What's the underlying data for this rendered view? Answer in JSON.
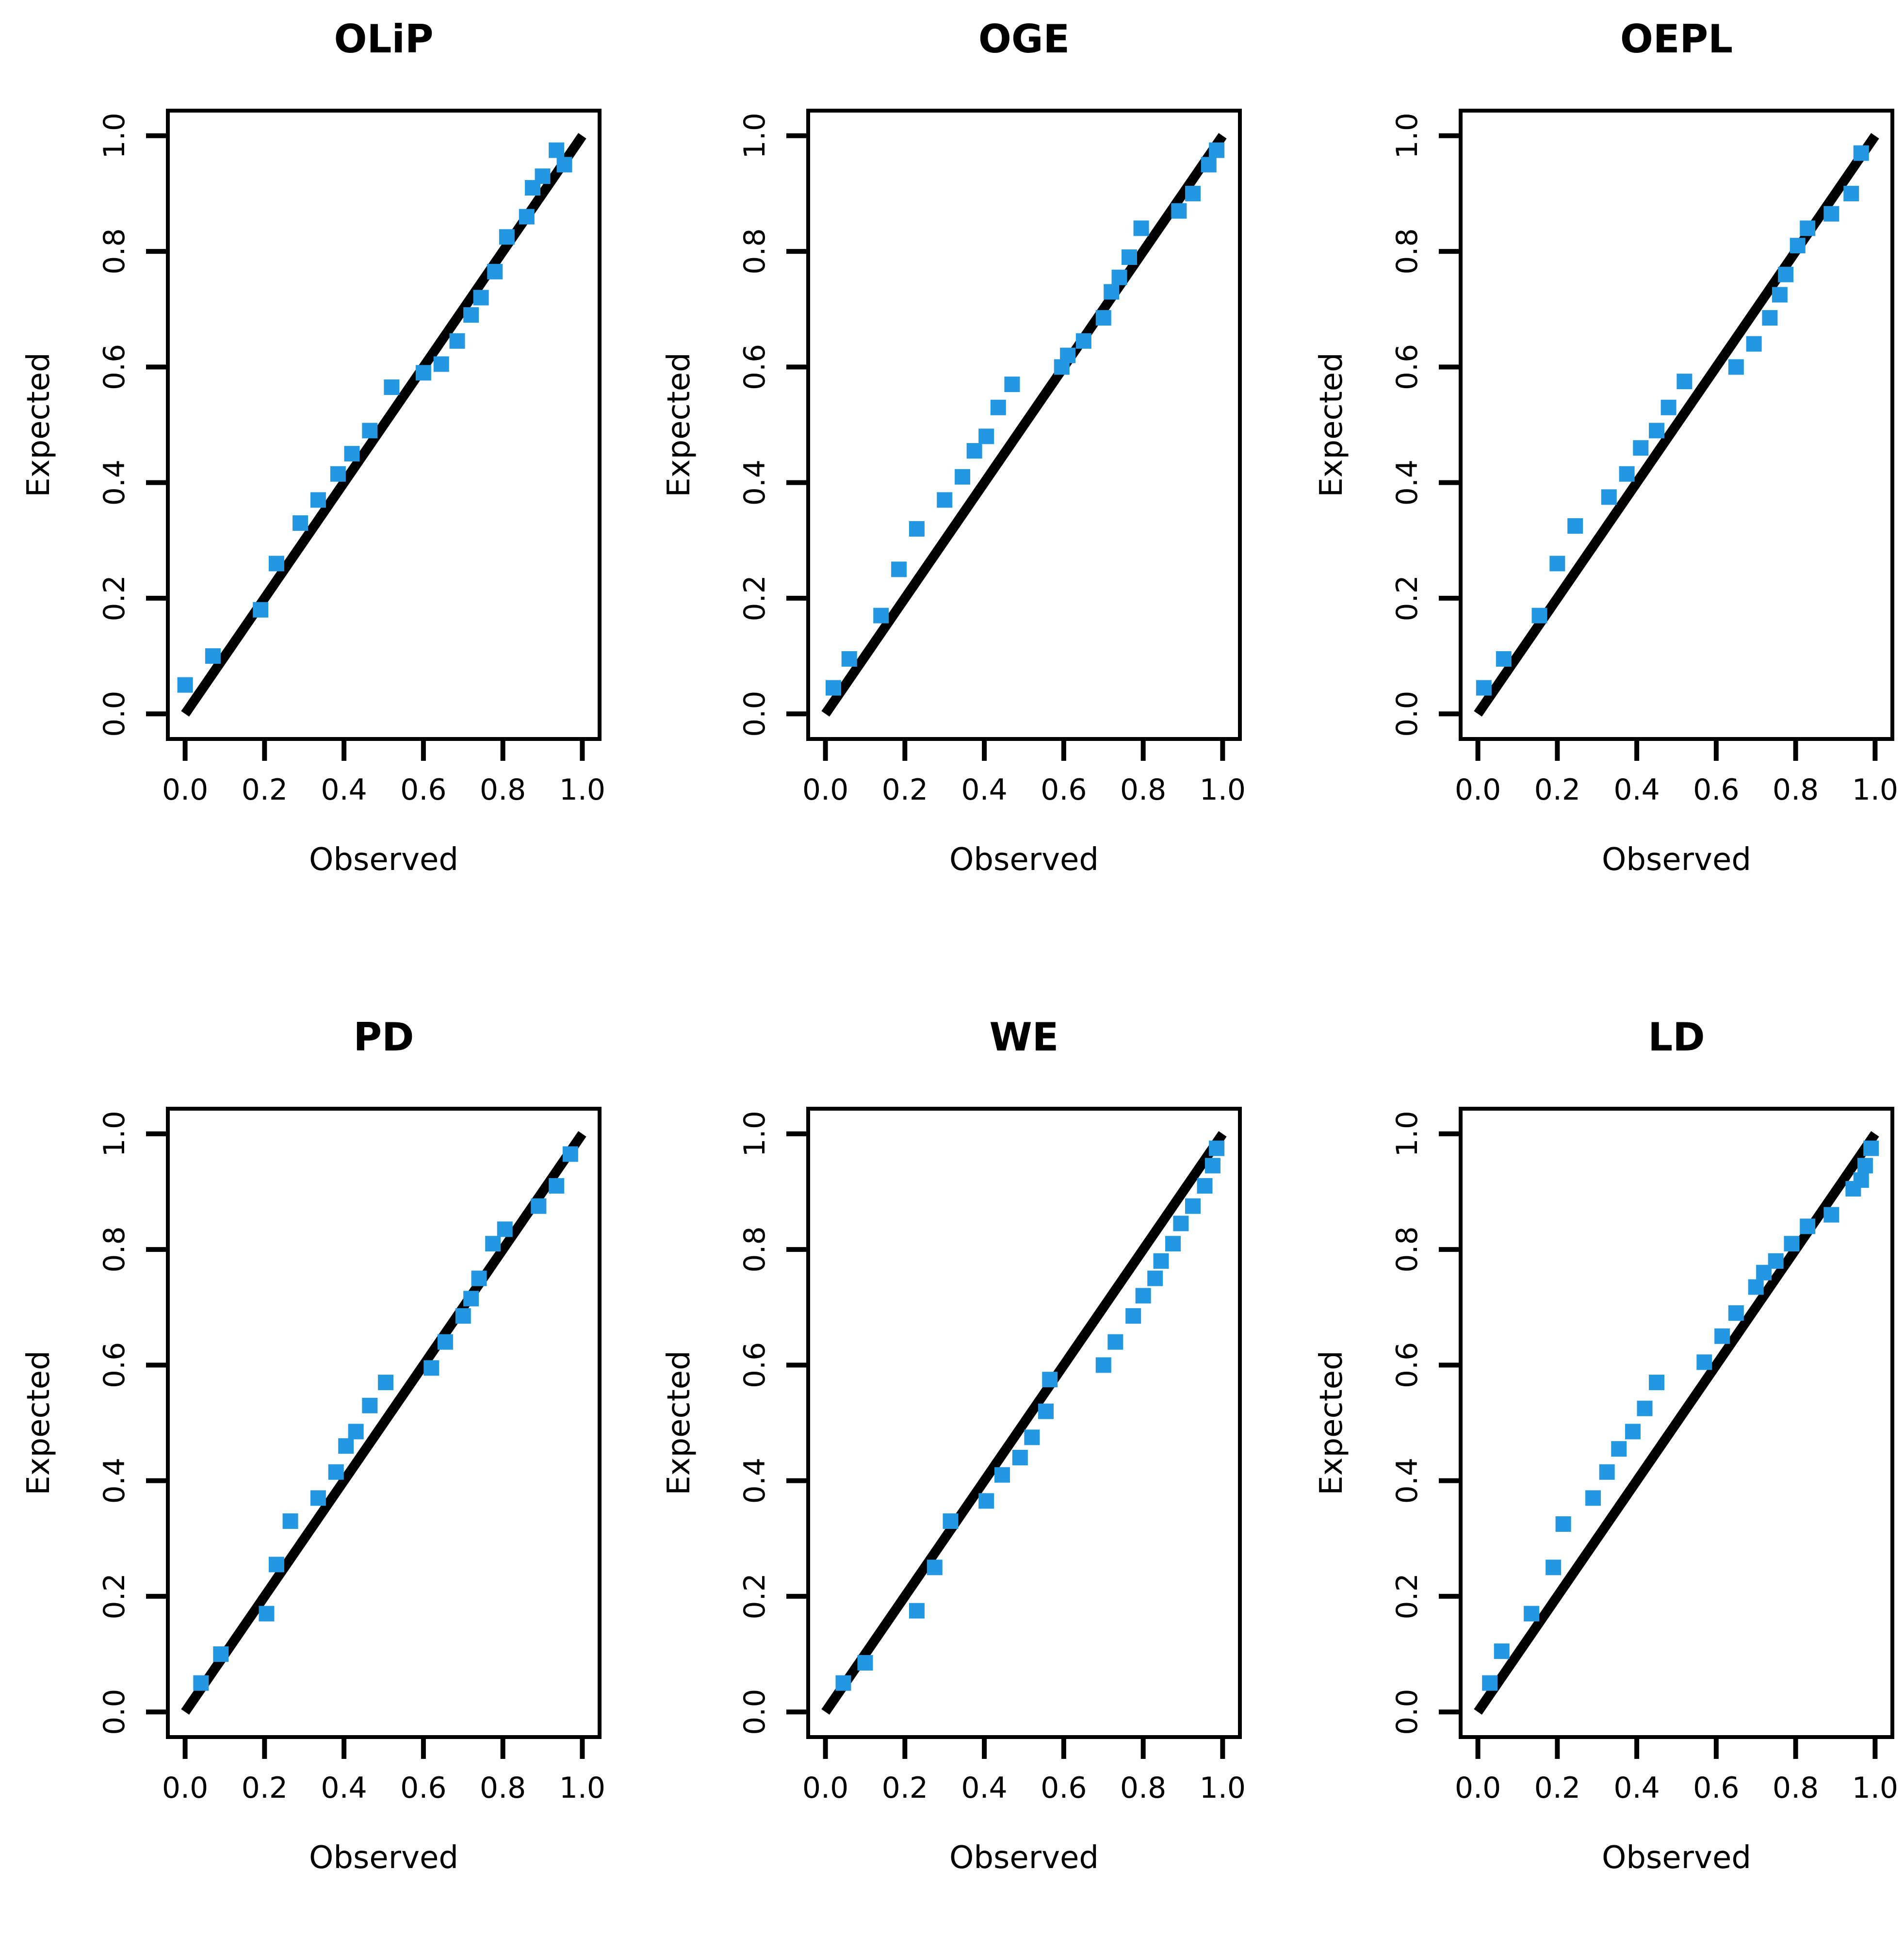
{
  "figure": {
    "background_color": "#ffffff",
    "point_color": "#2497E3",
    "reference_line_color": "#000000",
    "axis_color": "#000000",
    "text_color": "#000000",
    "x_axis_label": "Observed",
    "y_axis_label": "Expected",
    "x_tick_labels": [
      "0.0",
      "0.2",
      "0.4",
      "0.6",
      "0.8",
      "1.0"
    ],
    "y_tick_labels": [
      "0.0",
      "0.2",
      "0.4",
      "0.6",
      "0.8",
      "1.0"
    ]
  },
  "chart_data": [
    {
      "type": "scatter",
      "title": "OLiP",
      "xlabel": "Observed",
      "ylabel": "Expected",
      "xlim": [
        0,
        1
      ],
      "ylim": [
        0,
        1
      ],
      "x_ticks": [
        0,
        0.2,
        0.4,
        0.6,
        0.8,
        1.0
      ],
      "y_ticks": [
        0,
        0.2,
        0.4,
        0.6,
        0.8,
        1.0
      ],
      "reference_line": {
        "from": [
          0,
          0
        ],
        "to": [
          1,
          1
        ]
      },
      "points": [
        [
          0.0,
          0.05
        ],
        [
          0.07,
          0.1
        ],
        [
          0.19,
          0.18
        ],
        [
          0.23,
          0.26
        ],
        [
          0.29,
          0.33
        ],
        [
          0.335,
          0.37
        ],
        [
          0.385,
          0.415
        ],
        [
          0.42,
          0.45
        ],
        [
          0.465,
          0.49
        ],
        [
          0.52,
          0.565
        ],
        [
          0.6,
          0.59
        ],
        [
          0.645,
          0.605
        ],
        [
          0.685,
          0.645
        ],
        [
          0.72,
          0.69
        ],
        [
          0.745,
          0.72
        ],
        [
          0.78,
          0.765
        ],
        [
          0.81,
          0.825
        ],
        [
          0.86,
          0.86
        ],
        [
          0.875,
          0.91
        ],
        [
          0.9,
          0.93
        ],
        [
          0.935,
          0.975
        ],
        [
          0.955,
          0.95
        ]
      ]
    },
    {
      "type": "scatter",
      "title": "OGE",
      "xlabel": "Observed",
      "ylabel": "Expected",
      "xlim": [
        0,
        1
      ],
      "ylim": [
        0,
        1
      ],
      "x_ticks": [
        0,
        0.2,
        0.4,
        0.6,
        0.8,
        1.0
      ],
      "y_ticks": [
        0,
        0.2,
        0.4,
        0.6,
        0.8,
        1.0
      ],
      "reference_line": {
        "from": [
          0,
          0
        ],
        "to": [
          1,
          1
        ]
      },
      "points": [
        [
          0.02,
          0.045
        ],
        [
          0.06,
          0.095
        ],
        [
          0.14,
          0.17
        ],
        [
          0.185,
          0.25
        ],
        [
          0.23,
          0.32
        ],
        [
          0.3,
          0.37
        ],
        [
          0.345,
          0.41
        ],
        [
          0.375,
          0.455
        ],
        [
          0.405,
          0.48
        ],
        [
          0.435,
          0.53
        ],
        [
          0.47,
          0.57
        ],
        [
          0.595,
          0.6
        ],
        [
          0.61,
          0.62
        ],
        [
          0.65,
          0.645
        ],
        [
          0.7,
          0.685
        ],
        [
          0.72,
          0.73
        ],
        [
          0.74,
          0.755
        ],
        [
          0.765,
          0.79
        ],
        [
          0.795,
          0.84
        ],
        [
          0.89,
          0.87
        ],
        [
          0.925,
          0.9
        ],
        [
          0.965,
          0.95
        ],
        [
          0.985,
          0.975
        ]
      ]
    },
    {
      "type": "scatter",
      "title": "OEPL",
      "xlabel": "Observed",
      "ylabel": "Expected",
      "xlim": [
        0,
        1
      ],
      "ylim": [
        0,
        1
      ],
      "x_ticks": [
        0,
        0.2,
        0.4,
        0.6,
        0.8,
        1.0
      ],
      "y_ticks": [
        0,
        0.2,
        0.4,
        0.6,
        0.8,
        1.0
      ],
      "reference_line": {
        "from": [
          0,
          0
        ],
        "to": [
          1,
          1
        ]
      },
      "points": [
        [
          0.015,
          0.045
        ],
        [
          0.065,
          0.095
        ],
        [
          0.155,
          0.17
        ],
        [
          0.2,
          0.26
        ],
        [
          0.245,
          0.325
        ],
        [
          0.33,
          0.375
        ],
        [
          0.375,
          0.415
        ],
        [
          0.41,
          0.46
        ],
        [
          0.45,
          0.49
        ],
        [
          0.48,
          0.53
        ],
        [
          0.52,
          0.575
        ],
        [
          0.65,
          0.6
        ],
        [
          0.695,
          0.64
        ],
        [
          0.735,
          0.685
        ],
        [
          0.76,
          0.725
        ],
        [
          0.775,
          0.76
        ],
        [
          0.805,
          0.81
        ],
        [
          0.83,
          0.84
        ],
        [
          0.89,
          0.865
        ],
        [
          0.94,
          0.9
        ],
        [
          0.965,
          0.97
        ]
      ]
    },
    {
      "type": "scatter",
      "title": "PD",
      "xlabel": "Observed",
      "ylabel": "Expected",
      "xlim": [
        0,
        1
      ],
      "ylim": [
        0,
        1
      ],
      "x_ticks": [
        0,
        0.2,
        0.4,
        0.6,
        0.8,
        1.0
      ],
      "y_ticks": [
        0,
        0.2,
        0.4,
        0.6,
        0.8,
        1.0
      ],
      "reference_line": {
        "from": [
          0,
          0
        ],
        "to": [
          1,
          1
        ]
      },
      "points": [
        [
          0.04,
          0.05
        ],
        [
          0.09,
          0.1
        ],
        [
          0.205,
          0.17
        ],
        [
          0.23,
          0.255
        ],
        [
          0.265,
          0.33
        ],
        [
          0.335,
          0.37
        ],
        [
          0.38,
          0.415
        ],
        [
          0.405,
          0.46
        ],
        [
          0.43,
          0.485
        ],
        [
          0.465,
          0.53
        ],
        [
          0.505,
          0.57
        ],
        [
          0.62,
          0.595
        ],
        [
          0.655,
          0.64
        ],
        [
          0.7,
          0.685
        ],
        [
          0.72,
          0.715
        ],
        [
          0.74,
          0.75
        ],
        [
          0.775,
          0.81
        ],
        [
          0.805,
          0.835
        ],
        [
          0.89,
          0.875
        ],
        [
          0.935,
          0.91
        ],
        [
          0.97,
          0.965
        ]
      ]
    },
    {
      "type": "scatter",
      "title": "WE",
      "xlabel": "Observed",
      "ylabel": "Expected",
      "xlim": [
        0,
        1
      ],
      "ylim": [
        0,
        1
      ],
      "x_ticks": [
        0,
        0.2,
        0.4,
        0.6,
        0.8,
        1.0
      ],
      "y_ticks": [
        0,
        0.2,
        0.4,
        0.6,
        0.8,
        1.0
      ],
      "reference_line": {
        "from": [
          0,
          0
        ],
        "to": [
          1,
          1
        ]
      },
      "points": [
        [
          0.045,
          0.05
        ],
        [
          0.1,
          0.085
        ],
        [
          0.23,
          0.175
        ],
        [
          0.275,
          0.25
        ],
        [
          0.315,
          0.33
        ],
        [
          0.405,
          0.365
        ],
        [
          0.445,
          0.41
        ],
        [
          0.49,
          0.44
        ],
        [
          0.52,
          0.475
        ],
        [
          0.555,
          0.52
        ],
        [
          0.565,
          0.575
        ],
        [
          0.7,
          0.6
        ],
        [
          0.73,
          0.64
        ],
        [
          0.775,
          0.685
        ],
        [
          0.8,
          0.72
        ],
        [
          0.83,
          0.75
        ],
        [
          0.845,
          0.78
        ],
        [
          0.875,
          0.81
        ],
        [
          0.895,
          0.845
        ],
        [
          0.925,
          0.875
        ],
        [
          0.955,
          0.91
        ],
        [
          0.975,
          0.945
        ],
        [
          0.985,
          0.975
        ]
      ]
    },
    {
      "type": "scatter",
      "title": "LD",
      "xlabel": "Observed",
      "ylabel": "Expected",
      "xlim": [
        0,
        1
      ],
      "ylim": [
        0,
        1
      ],
      "x_ticks": [
        0,
        0.2,
        0.4,
        0.6,
        0.8,
        1.0
      ],
      "y_ticks": [
        0,
        0.2,
        0.4,
        0.6,
        0.8,
        1.0
      ],
      "reference_line": {
        "from": [
          0,
          0
        ],
        "to": [
          1,
          1
        ]
      },
      "points": [
        [
          0.03,
          0.05
        ],
        [
          0.06,
          0.105
        ],
        [
          0.135,
          0.17
        ],
        [
          0.19,
          0.25
        ],
        [
          0.215,
          0.325
        ],
        [
          0.29,
          0.37
        ],
        [
          0.325,
          0.415
        ],
        [
          0.355,
          0.455
        ],
        [
          0.39,
          0.485
        ],
        [
          0.42,
          0.525
        ],
        [
          0.45,
          0.57
        ],
        [
          0.57,
          0.605
        ],
        [
          0.615,
          0.65
        ],
        [
          0.65,
          0.69
        ],
        [
          0.7,
          0.735
        ],
        [
          0.72,
          0.76
        ],
        [
          0.75,
          0.78
        ],
        [
          0.79,
          0.81
        ],
        [
          0.83,
          0.84
        ],
        [
          0.89,
          0.86
        ],
        [
          0.945,
          0.905
        ],
        [
          0.965,
          0.92
        ],
        [
          0.975,
          0.945
        ],
        [
          0.99,
          0.975
        ]
      ]
    }
  ]
}
